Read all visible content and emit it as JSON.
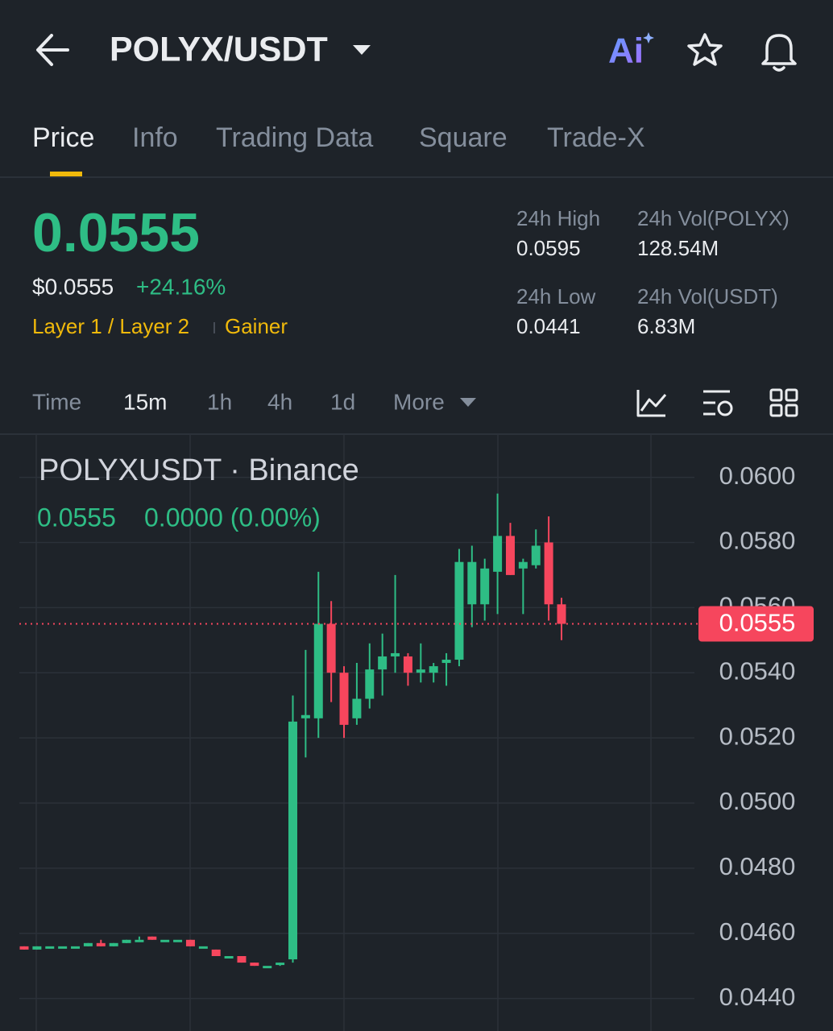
{
  "header": {
    "title": "POLYX/USDT",
    "ai_label": "Ai"
  },
  "tabs": [
    "Price",
    "Info",
    "Trading Data",
    "Square",
    "Trade-X"
  ],
  "price": {
    "last": "0.0555",
    "usd": "$0.0555",
    "change": "+24.16%",
    "tags": [
      "Layer 1 / Layer 2",
      "Gainer"
    ]
  },
  "stats": [
    {
      "label": "24h High",
      "value": "0.0595"
    },
    {
      "label": "24h Vol(POLYX)",
      "value": "128.54M"
    },
    {
      "label": "24h Low",
      "value": "0.0441"
    },
    {
      "label": "24h Vol(USDT)",
      "value": "6.83M"
    }
  ],
  "intervals": [
    "Time",
    "15m",
    "1h",
    "4h",
    "1d",
    "More"
  ],
  "chart_data": {
    "type": "candlestick",
    "title": "POLYXUSDT · Binance",
    "legend_close": "0.0555",
    "legend_change": "0.0000 (0.00%)",
    "up_color": "#2ebd85",
    "down_color": "#f6465d",
    "open": [
      0.0456,
      0.0455,
      0.0456,
      0.0456,
      0.0456,
      0.0456,
      0.0457,
      0.0456,
      0.0457,
      0.0458,
      0.0459,
      0.0458,
      0.0458,
      0.0458,
      0.0456,
      0.0455,
      0.0453,
      0.0453,
      0.0451,
      0.045,
      0.0451,
      0.0452,
      0.0526,
      0.0526,
      0.0555,
      0.054,
      0.0526,
      0.0532,
      0.0541,
      0.0545,
      0.0545,
      0.054,
      0.054,
      0.0543,
      0.0544,
      0.0561,
      0.0561,
      0.0571,
      0.0582,
      0.0572,
      0.0573,
      0.058,
      0.0561
    ],
    "high": [
      0.0456,
      0.0456,
      0.0456,
      0.0456,
      0.0456,
      0.0457,
      0.0458,
      0.0457,
      0.0458,
      0.0459,
      0.0459,
      0.0458,
      0.0458,
      0.0458,
      0.0456,
      0.0455,
      0.0453,
      0.0453,
      0.0451,
      0.045,
      0.0451,
      0.0533,
      0.0547,
      0.0571,
      0.0562,
      0.0542,
      0.0543,
      0.0549,
      0.0552,
      0.057,
      0.0546,
      0.0549,
      0.0543,
      0.0546,
      0.0578,
      0.0579,
      0.0575,
      0.0595,
      0.0586,
      0.0575,
      0.0584,
      0.0588,
      0.0563
    ],
    "low": [
      0.0455,
      0.0455,
      0.0456,
      0.0456,
      0.0456,
      0.0456,
      0.0456,
      0.0456,
      0.0457,
      0.0458,
      0.0458,
      0.0458,
      0.0458,
      0.0456,
      0.0456,
      0.0453,
      0.0453,
      0.0451,
      0.045,
      0.045,
      0.045,
      0.0451,
      0.0514,
      0.052,
      0.0531,
      0.052,
      0.0524,
      0.0529,
      0.0533,
      0.054,
      0.0536,
      0.0537,
      0.0537,
      0.0536,
      0.0542,
      0.0554,
      0.0556,
      0.0558,
      0.057,
      0.0558,
      0.0572,
      0.0556,
      0.055
    ],
    "close": [
      0.0455,
      0.0456,
      0.0456,
      0.0456,
      0.0456,
      0.0457,
      0.0456,
      0.0457,
      0.0458,
      0.0458,
      0.0458,
      0.0458,
      0.0458,
      0.0456,
      0.0456,
      0.0453,
      0.0453,
      0.0451,
      0.045,
      0.045,
      0.0451,
      0.0525,
      0.0527,
      0.0555,
      0.054,
      0.0524,
      0.0532,
      0.0541,
      0.0545,
      0.0546,
      0.054,
      0.0541,
      0.0542,
      0.0544,
      0.0574,
      0.0574,
      0.0572,
      0.0582,
      0.057,
      0.0574,
      0.0579,
      0.0561,
      0.0555
    ],
    "last_price": 0.0555,
    "ylim": [
      0.043,
      0.0613
    ],
    "yticks": [
      {
        "value": 0.044,
        "label": "0.0440"
      },
      {
        "value": 0.046,
        "label": "0.0460"
      },
      {
        "value": 0.048,
        "label": "0.0480"
      },
      {
        "value": 0.05,
        "label": "0.0500"
      },
      {
        "value": 0.052,
        "label": "0.0520"
      },
      {
        "value": 0.054,
        "label": "0.0540"
      },
      {
        "value": 0.056,
        "label": "0.0560"
      },
      {
        "value": 0.058,
        "label": "0.0580"
      },
      {
        "value": 0.06,
        "label": "0.0600"
      }
    ],
    "grid": true
  }
}
